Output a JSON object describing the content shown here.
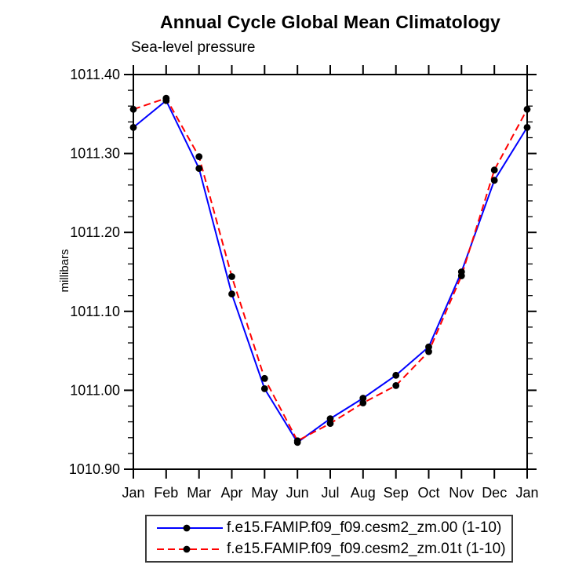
{
  "chart_data": {
    "type": "line",
    "title": "Annual Cycle Global Mean Climatology",
    "subtitle": "Sea-level pressure",
    "ylabel": "millibars",
    "xlabel": "",
    "x_categories": [
      "Jan",
      "Feb",
      "Mar",
      "Apr",
      "May",
      "Jun",
      "Jul",
      "Aug",
      "Sep",
      "Oct",
      "Nov",
      "Dec",
      "Jan"
    ],
    "ylim": [
      1010.9,
      1011.4
    ],
    "y_tick_labels": [
      "1011.40",
      "1011.30",
      "1011.20",
      "1011.10",
      "1011.00",
      "1010.90"
    ],
    "y_major_tick_step": 0.1,
    "y_minor_tick_step": 0.02,
    "grid": false,
    "axis_color": "#000000",
    "marker_color": "#000000",
    "legend_position": "bottom",
    "series": [
      {
        "name": "f.e15.FAMIP.f09_f09.cesm2_zm.00 (1-10)",
        "color": "#0000ff",
        "line_style": "solid",
        "marker": "filled-circle",
        "values": [
          1011.333,
          1011.367,
          1011.281,
          1011.122,
          1011.002,
          1010.934,
          1010.964,
          1010.99,
          1011.019,
          1011.055,
          1011.15,
          1011.266,
          1011.333
        ]
      },
      {
        "name": "f.e15.FAMIP.f09_f09.cesm2_zm.01t (1-10)",
        "color": "#ff0000",
        "line_style": "dashed",
        "marker": "filled-circle",
        "values": [
          1011.356,
          1011.37,
          1011.296,
          1011.144,
          1011.015,
          1010.936,
          1010.958,
          1010.984,
          1011.006,
          1011.049,
          1011.145,
          1011.279,
          1011.356
        ]
      }
    ]
  }
}
